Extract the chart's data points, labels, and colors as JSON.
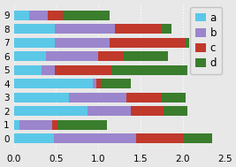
{
  "categories": [
    0,
    1,
    2,
    3,
    4,
    5,
    6,
    7,
    8,
    9
  ],
  "a": [
    0.47,
    0.07,
    0.87,
    0.65,
    0.93,
    0.33,
    0.38,
    0.48,
    0.48,
    0.18
  ],
  "b": [
    0.98,
    0.38,
    0.52,
    0.68,
    0.05,
    0.15,
    0.62,
    0.65,
    0.72,
    0.22
  ],
  "c": [
    0.55,
    0.07,
    0.38,
    0.42,
    0.05,
    0.68,
    0.3,
    0.9,
    0.55,
    0.18
  ],
  "d": [
    0.35,
    0.58,
    0.28,
    0.28,
    0.35,
    0.9,
    0.52,
    0.05,
    0.12,
    0.55
  ],
  "colors": {
    "a": "#5bc8e8",
    "b": "#9b85cc",
    "c": "#c0392b",
    "d": "#3a7d2c"
  },
  "xlim": [
    0.0,
    2.5
  ],
  "xticks": [
    0.0,
    0.5,
    1.0,
    1.5,
    2.0,
    2.5
  ],
  "bg_color": "#e8e8e8",
  "grid_color": "#ffffff",
  "bar_height": 0.72,
  "tick_fontsize": 7.5,
  "legend_fontsize": 8.5
}
